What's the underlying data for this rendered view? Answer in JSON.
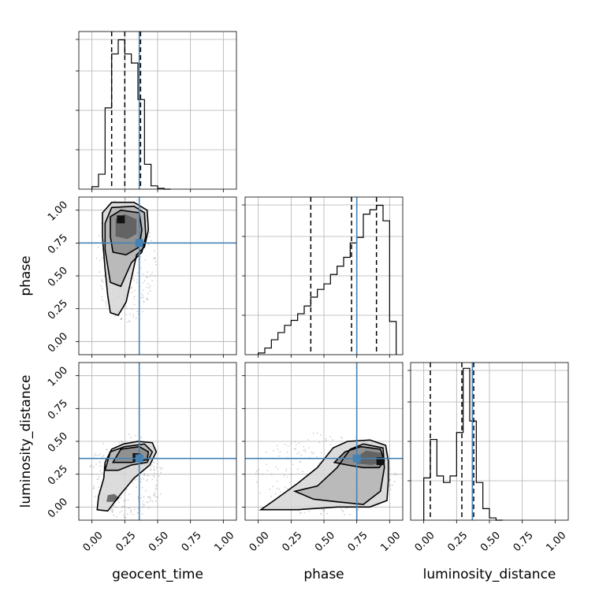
{
  "chart_data": {
    "type": "corner",
    "parameters": [
      "geocent_time",
      "phase",
      "luminosity_distance"
    ],
    "truth": {
      "geocent_time": 0.36,
      "phase": 0.75,
      "luminosity_distance": 0.37
    },
    "truth_color": "#4682b4",
    "axis_range": [
      -0.1,
      1.1
    ],
    "ticks": [
      "0.00",
      "0.25",
      "0.50",
      "0.75",
      "1.00"
    ],
    "grid": true,
    "histograms": {
      "geocent_time": {
        "bins": [
          0.0,
          0.05,
          0.1,
          0.15,
          0.2,
          0.25,
          0.3,
          0.35,
          0.4,
          0.45,
          0.5,
          0.55,
          0.6
        ],
        "counts": [
          3,
          18,
          98,
          163,
          180,
          163,
          152,
          108,
          30,
          4,
          1,
          0
        ],
        "quantiles": [
          0.15,
          0.25,
          0.37
        ],
        "ylim": [
          0,
          190
        ]
      },
      "phase": {
        "bins": [
          0.0,
          0.05,
          0.1,
          0.15,
          0.2,
          0.25,
          0.3,
          0.35,
          0.4,
          0.45,
          0.5,
          0.55,
          0.6,
          0.65,
          0.7,
          0.75,
          0.8,
          0.85,
          0.9,
          0.95,
          1.0,
          1.05
        ],
        "counts": [
          3,
          12,
          27,
          40,
          53,
          62,
          74,
          88,
          104,
          118,
          128,
          145,
          160,
          176,
          202,
          212,
          254,
          262,
          270,
          242,
          60
        ],
        "quantiles": [
          0.4,
          0.71,
          0.9
        ],
        "ylim": [
          0,
          285
        ]
      },
      "luminosity_distance": {
        "bins": [
          0.0,
          0.05,
          0.1,
          0.15,
          0.2,
          0.25,
          0.3,
          0.35,
          0.4,
          0.45,
          0.5,
          0.55,
          0.6
        ],
        "counts": [
          110,
          210,
          115,
          98,
          115,
          228,
          395,
          258,
          98,
          30,
          6,
          0
        ],
        "quantiles": [
          0.05,
          0.29,
          0.38
        ],
        "ylim": [
          0,
          410
        ]
      }
    },
    "contours": {
      "phase_vs_geocent_time": {
        "x": "geocent_time",
        "y": "phase",
        "levels": [
          [
            [
              0.14,
              0.22
            ],
            [
              0.2,
              0.2
            ],
            [
              0.26,
              0.3
            ],
            [
              0.3,
              0.48
            ],
            [
              0.34,
              0.66
            ],
            [
              0.4,
              0.72
            ],
            [
              0.43,
              0.85
            ],
            [
              0.42,
              1.0
            ],
            [
              0.32,
              1.06
            ],
            [
              0.15,
              1.06
            ],
            [
              0.08,
              0.98
            ],
            [
              0.08,
              0.8
            ],
            [
              0.1,
              0.55
            ],
            [
              0.12,
              0.35
            ]
          ],
          [
            [
              0.14,
              0.45
            ],
            [
              0.22,
              0.42
            ],
            [
              0.3,
              0.6
            ],
            [
              0.38,
              0.68
            ],
            [
              0.41,
              0.8
            ],
            [
              0.4,
              0.98
            ],
            [
              0.32,
              1.03
            ],
            [
              0.15,
              1.02
            ],
            [
              0.1,
              0.9
            ],
            [
              0.1,
              0.7
            ]
          ],
          [
            [
              0.16,
              0.68
            ],
            [
              0.26,
              0.66
            ],
            [
              0.36,
              0.72
            ],
            [
              0.38,
              0.85
            ],
            [
              0.36,
              0.98
            ],
            [
              0.22,
              1.0
            ],
            [
              0.14,
              0.95
            ],
            [
              0.14,
              0.8
            ]
          ],
          [
            [
              0.18,
              0.8
            ],
            [
              0.27,
              0.78
            ],
            [
              0.34,
              0.82
            ],
            [
              0.34,
              0.93
            ],
            [
              0.25,
              0.97
            ],
            [
              0.18,
              0.93
            ]
          ]
        ],
        "peak": [
          0.22,
          0.93
        ]
      },
      "luminosity_distance_vs_geocent_time": {
        "x": "geocent_time",
        "y": "luminosity_distance",
        "levels": [
          [
            [
              0.04,
              -0.02
            ],
            [
              0.12,
              -0.03
            ],
            [
              0.22,
              0.1
            ],
            [
              0.32,
              0.22
            ],
            [
              0.44,
              0.32
            ],
            [
              0.49,
              0.42
            ],
            [
              0.46,
              0.49
            ],
            [
              0.35,
              0.5
            ],
            [
              0.24,
              0.48
            ],
            [
              0.15,
              0.44
            ],
            [
              0.1,
              0.34
            ],
            [
              0.09,
              0.22
            ],
            [
              0.05,
              0.08
            ]
          ],
          [
            [
              0.1,
              0.28
            ],
            [
              0.2,
              0.28
            ],
            [
              0.3,
              0.32
            ],
            [
              0.42,
              0.34
            ],
            [
              0.46,
              0.42
            ],
            [
              0.4,
              0.48
            ],
            [
              0.25,
              0.46
            ],
            [
              0.14,
              0.42
            ]
          ],
          [
            [
              0.16,
              0.34
            ],
            [
              0.3,
              0.34
            ],
            [
              0.42,
              0.36
            ],
            [
              0.43,
              0.42
            ],
            [
              0.36,
              0.46
            ],
            [
              0.22,
              0.44
            ]
          ],
          [
            [
              0.11,
              0.04
            ],
            [
              0.18,
              0.04
            ],
            [
              0.21,
              0.07
            ],
            [
              0.17,
              0.1
            ],
            [
              0.12,
              0.09
            ]
          ]
        ],
        "peak": [
          0.34,
          0.38
        ]
      },
      "luminosity_distance_vs_phase": {
        "x": "phase",
        "y": "luminosity_distance",
        "levels": [
          [
            [
              0.02,
              -0.02
            ],
            [
              0.3,
              -0.02
            ],
            [
              0.6,
              0.0
            ],
            [
              0.85,
              0.0
            ],
            [
              0.98,
              0.05
            ],
            [
              0.99,
              0.2
            ],
            [
              0.99,
              0.35
            ],
            [
              0.97,
              0.47
            ],
            [
              0.85,
              0.51
            ],
            [
              0.68,
              0.5
            ],
            [
              0.57,
              0.45
            ],
            [
              0.45,
              0.3
            ],
            [
              0.3,
              0.18
            ],
            [
              0.12,
              0.05
            ]
          ],
          [
            [
              0.28,
              0.12
            ],
            [
              0.45,
              0.16
            ],
            [
              0.6,
              0.3
            ],
            [
              0.7,
              0.44
            ],
            [
              0.8,
              0.48
            ],
            [
              0.95,
              0.45
            ],
            [
              0.96,
              0.3
            ],
            [
              0.93,
              0.12
            ],
            [
              0.8,
              0.02
            ],
            [
              0.6,
              0.04
            ],
            [
              0.42,
              0.06
            ]
          ],
          [
            [
              0.58,
              0.34
            ],
            [
              0.66,
              0.42
            ],
            [
              0.78,
              0.46
            ],
            [
              0.93,
              0.44
            ],
            [
              0.96,
              0.35
            ],
            [
              0.92,
              0.3
            ],
            [
              0.8,
              0.3
            ],
            [
              0.68,
              0.32
            ]
          ],
          [
            [
              0.72,
              0.36
            ],
            [
              0.82,
              0.43
            ],
            [
              0.94,
              0.41
            ],
            [
              0.95,
              0.34
            ],
            [
              0.86,
              0.32
            ],
            [
              0.76,
              0.33
            ]
          ]
        ],
        "peak": [
          0.93,
          0.35
        ]
      }
    }
  }
}
